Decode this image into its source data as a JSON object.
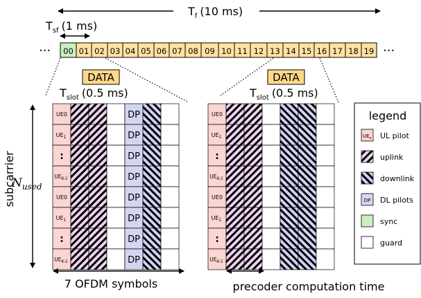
{
  "frame": {
    "tf_main": "T",
    "tf_sub": "f",
    "tf_value": "(10 ms)",
    "tsf_main": "T",
    "tsf_sub": "sf",
    "tsf_value": "(1 ms)",
    "ellipsis": "···",
    "subframes": [
      "00",
      "01",
      "02",
      "03",
      "04",
      "05",
      "06",
      "07",
      "08",
      "09",
      "10",
      "11",
      "12",
      "13",
      "14",
      "15",
      "16",
      "17",
      "18",
      "19"
    ]
  },
  "slots": {
    "data_label": "DATA",
    "tslot_main": "T",
    "tslot_sub": "slot",
    "tslot_value": "(0.5 ms)"
  },
  "grid": {
    "ue0": "UE0",
    "ue1_main": "UE",
    "ue1_sub": "1",
    "dots": ":",
    "uek_main": "UE",
    "uek_sub": "K-1",
    "dp": "DP"
  },
  "axes": {
    "subcarrier": "subcarrier",
    "nused_main": "N",
    "nused_sub": "used",
    "ofdm": "7 OFDM symbols",
    "precoder": "precoder computation time"
  },
  "legend": {
    "title": "legend",
    "ulpilot_icon": "UE",
    "ulpilot_icon_sub": "x",
    "ulpilot": "UL pilot",
    "uplink": "uplink",
    "downlink": "downlink",
    "dp_icon": "DP",
    "dlpilots": "DL pilots",
    "sync": "sync",
    "guard": "guard"
  },
  "colors": {
    "subframe_fill": "#ffe2a0",
    "sync_fill": "#c9f0c0",
    "ulpilot_fill": "#fbd5d2",
    "uplink_fill": "#ecd2ee",
    "downlink_fill": "#cfd2f2",
    "dp_fill": "#d3d6f3",
    "data_fill": "#ffd88a"
  }
}
